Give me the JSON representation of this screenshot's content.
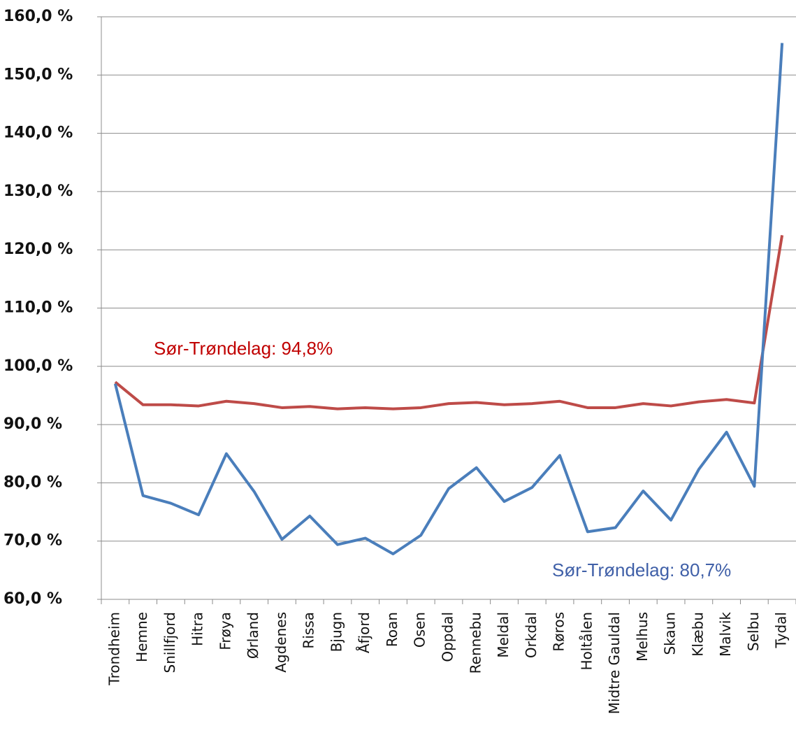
{
  "chart_data": {
    "type": "line",
    "categories": [
      "Trondheim",
      "Hemne",
      "Snillfjord",
      "Hitra",
      "Frøya",
      "Ørland",
      "Agdenes",
      "Rissa",
      "Bjugn",
      "Åfjord",
      "Roan",
      "Osen",
      "Oppdal",
      "Rennebu",
      "Meldal",
      "Orkdal",
      "Røros",
      "Holtålen",
      "Midtre Gauldal",
      "Melhus",
      "Skaun",
      "Klæbu",
      "Malvik",
      "Selbu",
      "Tydal"
    ],
    "series": [
      {
        "color": "#4a7ebb",
        "values": [
          97,
          77.8,
          76.5,
          74.5,
          85,
          78.5,
          70.3,
          74.3,
          69.4,
          70.5,
          67.8,
          71,
          79,
          82.6,
          76.8,
          79.2,
          84.7,
          71.6,
          72.3,
          78.6,
          73.6,
          82.3,
          88.7,
          79.4,
          155.5
        ]
      },
      {
        "color": "#be4b48",
        "values": [
          97.3,
          93.4,
          93.4,
          93.2,
          94,
          93.6,
          92.9,
          93.1,
          92.7,
          92.9,
          92.7,
          92.9,
          93.6,
          93.8,
          93.4,
          93.6,
          94,
          92.9,
          92.9,
          93.6,
          93.2,
          93.9,
          94.3,
          93.7,
          122.5
        ]
      }
    ],
    "annotations": [
      {
        "text": "Sør-Trøndelag: 94,8%",
        "color": "#c00000"
      },
      {
        "text": "Sør-Trøndelag: 80,7%",
        "color": "#4060a8"
      }
    ],
    "ylim": [
      60,
      160
    ],
    "yticks": [
      {
        "value": 60,
        "label": "60,0 %"
      },
      {
        "value": 70,
        "label": "70,0 %"
      },
      {
        "value": 80,
        "label": "80,0 %"
      },
      {
        "value": 90,
        "label": "90,0 %"
      },
      {
        "value": 100,
        "label": "100,0 %"
      },
      {
        "value": 110,
        "label": "110,0 %"
      },
      {
        "value": 120,
        "label": "120,0 %"
      },
      {
        "value": 130,
        "label": "130,0 %"
      },
      {
        "value": 140,
        "label": "140,0 %"
      },
      {
        "value": 150,
        "label": "150,0 %"
      },
      {
        "value": 160,
        "label": "160,0 %"
      }
    ],
    "grid": true
  }
}
